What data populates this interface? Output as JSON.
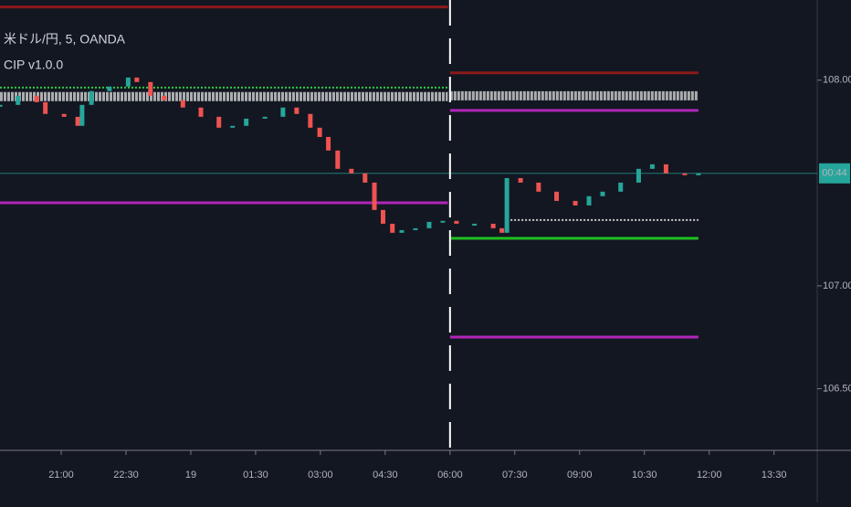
{
  "chart_data": {
    "type": "candlestick",
    "symbol_label": "米ドル/円, 5, OANDA",
    "indicator_label": "CIP v1.0.0",
    "background": "#131722",
    "up_color": "#26a69a",
    "down_color": "#ef5350",
    "xlim": [
      -85,
      1050
    ],
    "xticks": [
      {
        "value": 0,
        "label": "21:00"
      },
      {
        "value": 90,
        "label": "22:30"
      },
      {
        "value": 180,
        "label": "19"
      },
      {
        "value": 270,
        "label": "01:30"
      },
      {
        "value": 360,
        "label": "03:00"
      },
      {
        "value": 450,
        "label": "04:30"
      },
      {
        "value": 540,
        "label": "06:00"
      },
      {
        "value": 630,
        "label": "07:30"
      },
      {
        "value": 720,
        "label": "09:00"
      },
      {
        "value": 810,
        "label": "10:30"
      },
      {
        "value": 900,
        "label": "12:00"
      },
      {
        "value": 990,
        "label": "13:30"
      }
    ],
    "ylim": [
      106.2,
      108.39
    ],
    "yticks": [
      {
        "value": 108,
        "label": "108.000"
      },
      {
        "value": 107,
        "label": "107.000"
      },
      {
        "value": 106.5,
        "label": "106.500"
      }
    ],
    "series": [
      {
        "x": [
          -85,
          -60,
          -34,
          -22,
          4,
          23,
          29,
          42,
          67,
          93,
          105,
          124,
          143,
          169,
          194,
          219,
          238,
          257,
          283,
          308,
          327,
          346,
          359,
          371,
          384,
          403,
          422,
          435,
          447,
          460,
          473,
          492,
          511,
          530,
          549,
          574,
          600,
          612,
          619,
          638,
          663,
          688,
          714,
          733,
          752,
          777,
          802,
          821,
          840,
          866,
          885
        ],
        "values": [
          107.88,
          107.924,
          107.893,
          107.836,
          107.822,
          107.778,
          107.88,
          107.947,
          107.969,
          108.013,
          107.991,
          107.924,
          107.902,
          107.867,
          107.822,
          107.769,
          107.778,
          107.813,
          107.822,
          107.867,
          107.836,
          107.769,
          107.724,
          107.658,
          107.569,
          107.547,
          107.502,
          107.369,
          107.302,
          107.258,
          107.271,
          107.28,
          107.311,
          107.316,
          107.302,
          107.302,
          107.28,
          107.258,
          107.524,
          107.502,
          107.458,
          107.413,
          107.391,
          107.436,
          107.458,
          107.502,
          107.569,
          107.591,
          107.547,
          107.538,
          107.547
        ]
      }
    ],
    "levels": [
      {
        "color": "#8b1a1a",
        "style": "solid",
        "y": 108.356,
        "x": [
          -85,
          537
        ]
      },
      {
        "color": "#8b1a1a",
        "style": "solid",
        "y": 108.036,
        "x": [
          540,
          885
        ]
      },
      {
        "color": "#2ecc40",
        "style": "dotted",
        "y": 107.964,
        "x": [
          -85,
          537
        ]
      },
      {
        "color": "#c8c8c8",
        "style": "band",
        "y": 107.92,
        "x": [
          -85,
          537
        ]
      },
      {
        "color": "#c8c8c8",
        "style": "band",
        "y": 107.924,
        "x": [
          540,
          885
        ]
      },
      {
        "color": "#b026b8",
        "style": "solid",
        "y": 107.853,
        "x": [
          540,
          885
        ]
      },
      {
        "color": "#b026b8",
        "style": "solid",
        "y": 107.404,
        "x": [
          -85,
          537
        ]
      },
      {
        "color": "#1fbf1f",
        "style": "solid",
        "y": 107.231,
        "x": [
          540,
          885
        ]
      },
      {
        "color": "#b026b8",
        "style": "solid",
        "y": 106.751,
        "x": [
          540,
          885
        ]
      },
      {
        "color": "#cccccc",
        "style": "dotted",
        "y": 107.32,
        "x": [
          619,
          885
        ]
      }
    ],
    "session_marker": 540,
    "current_price": 107.547,
    "current_color": "#26a69a",
    "countdown_label": "00:44"
  }
}
